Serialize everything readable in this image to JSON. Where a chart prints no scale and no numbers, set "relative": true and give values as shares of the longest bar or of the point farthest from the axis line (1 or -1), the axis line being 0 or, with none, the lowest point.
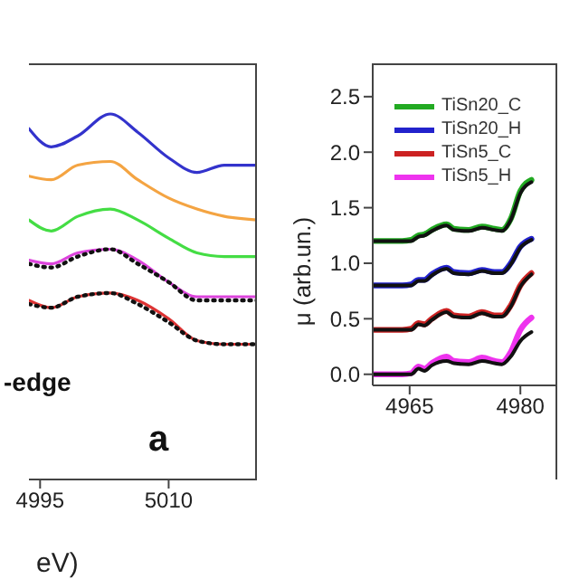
{
  "chart_data": [
    {
      "type": "line",
      "relative": true,
      "xlabel": "eV)",
      "tick_labels": "x",
      "annotations": [
        "-edge",
        "a"
      ],
      "x": [
        4993.7,
        4996.3,
        4999.4,
        5003.2,
        5006.4,
        5010,
        5013.3,
        5016.5,
        5020.3
      ],
      "xlim": [
        4993.7,
        5020.3
      ],
      "xticks": [
        4995,
        5010
      ],
      "series": [
        {
          "color": "#3333cc",
          "values": [
            0.96,
            0.91,
            0.94,
            1,
            0.95,
            0.88,
            0.84,
            0.86,
            0.86
          ]
        },
        {
          "color": "#f4a442",
          "values": [
            0.83,
            0.82,
            0.86,
            0.87,
            0.82,
            0.77,
            0.74,
            0.72,
            0.71
          ]
        },
        {
          "color": "#44dd44",
          "values": [
            0.71,
            0.68,
            0.72,
            0.74,
            0.71,
            0.66,
            0.62,
            0.61,
            0.61
          ]
        },
        {
          "color": "#dd44dd",
          "values": [
            0.6,
            0.59,
            0.62,
            0.63,
            0.6,
            0.54,
            0.5,
            0.5,
            0.5
          ]
        },
        {
          "color": "#dd3333",
          "values": [
            0.49,
            0.47,
            0.5,
            0.51,
            0.49,
            0.44,
            0.38,
            0.37,
            0.37
          ]
        },
        {
          "color": "#111111",
          "line_style": "dotted",
          "values": [
            0.59,
            0.58,
            0.61,
            0.63,
            0.59,
            0.54,
            0.49,
            0.49,
            0.49
          ]
        },
        {
          "color": "#111111",
          "line_style": "dotted",
          "values": [
            0.48,
            0.47,
            0.5,
            0.51,
            0.48,
            0.43,
            0.38,
            0.37,
            0.37
          ]
        }
      ]
    },
    {
      "type": "line",
      "ylabel": "μ (arb.un.)",
      "legend": "top left",
      "x": [
        4960,
        4964,
        4965.2,
        4966.2,
        4967,
        4968,
        4970,
        4971,
        4973,
        4974.8,
        4976.5,
        4977.5,
        4978.7,
        4980,
        4981.5
      ],
      "xlim": [
        4960,
        4985
      ],
      "xticks": [
        4965,
        4980
      ],
      "ylim": [
        -0.1,
        2.8
      ],
      "yticks": [
        {
          "value": 0,
          "label": "0.0"
        },
        {
          "value": 0.5,
          "label": "0.5"
        },
        {
          "value": 1,
          "label": "1.0"
        },
        {
          "value": 1.5,
          "label": "1.5"
        },
        {
          "value": 2,
          "label": "2.0"
        },
        {
          "value": 2.5,
          "label": "2.5"
        }
      ],
      "series": [
        {
          "name": "TiSn20_C",
          "color": "#22aa22",
          "values": [
            1.2,
            1.2,
            1.21,
            1.25,
            1.26,
            1.3,
            1.35,
            1.31,
            1.3,
            1.33,
            1.31,
            1.3,
            1.4,
            1.65,
            1.75
          ]
        },
        {
          "name": "TiSn20_H",
          "color": "#2222cc",
          "values": [
            0.8,
            0.8,
            0.81,
            0.85,
            0.85,
            0.9,
            0.96,
            0.92,
            0.91,
            0.94,
            0.92,
            0.92,
            1.0,
            1.15,
            1.22
          ]
        },
        {
          "name": "TiSn5_C",
          "color": "#cc2222",
          "values": [
            0.4,
            0.4,
            0.41,
            0.46,
            0.45,
            0.5,
            0.57,
            0.53,
            0.52,
            0.56,
            0.53,
            0.53,
            0.62,
            0.8,
            0.91
          ]
        },
        {
          "name": "TiSn5_H",
          "color": "#ee33ee",
          "values": [
            0,
            0,
            0.01,
            0.07,
            0.05,
            0.1,
            0.16,
            0.12,
            0.11,
            0.15,
            0.12,
            0.11,
            0.2,
            0.4,
            0.51
          ]
        },
        {
          "color": "#111111",
          "values": [
            1.2,
            1.2,
            1.2,
            1.24,
            1.25,
            1.29,
            1.34,
            1.3,
            1.29,
            1.32,
            1.3,
            1.29,
            1.39,
            1.63,
            1.73
          ]
        },
        {
          "color": "#111111",
          "values": [
            0.8,
            0.8,
            0.8,
            0.84,
            0.84,
            0.89,
            0.95,
            0.91,
            0.9,
            0.93,
            0.91,
            0.91,
            0.99,
            1.14,
            1.21
          ]
        },
        {
          "color": "#111111",
          "values": [
            0.4,
            0.4,
            0.4,
            0.45,
            0.44,
            0.49,
            0.56,
            0.52,
            0.51,
            0.55,
            0.52,
            0.52,
            0.61,
            0.79,
            0.9
          ]
        },
        {
          "color": "#111111",
          "values": [
            0,
            0,
            0,
            0.05,
            0.03,
            0.08,
            0.12,
            0.1,
            0.09,
            0.12,
            0.1,
            0.09,
            0.16,
            0.3,
            0.38
          ]
        }
      ]
    }
  ]
}
